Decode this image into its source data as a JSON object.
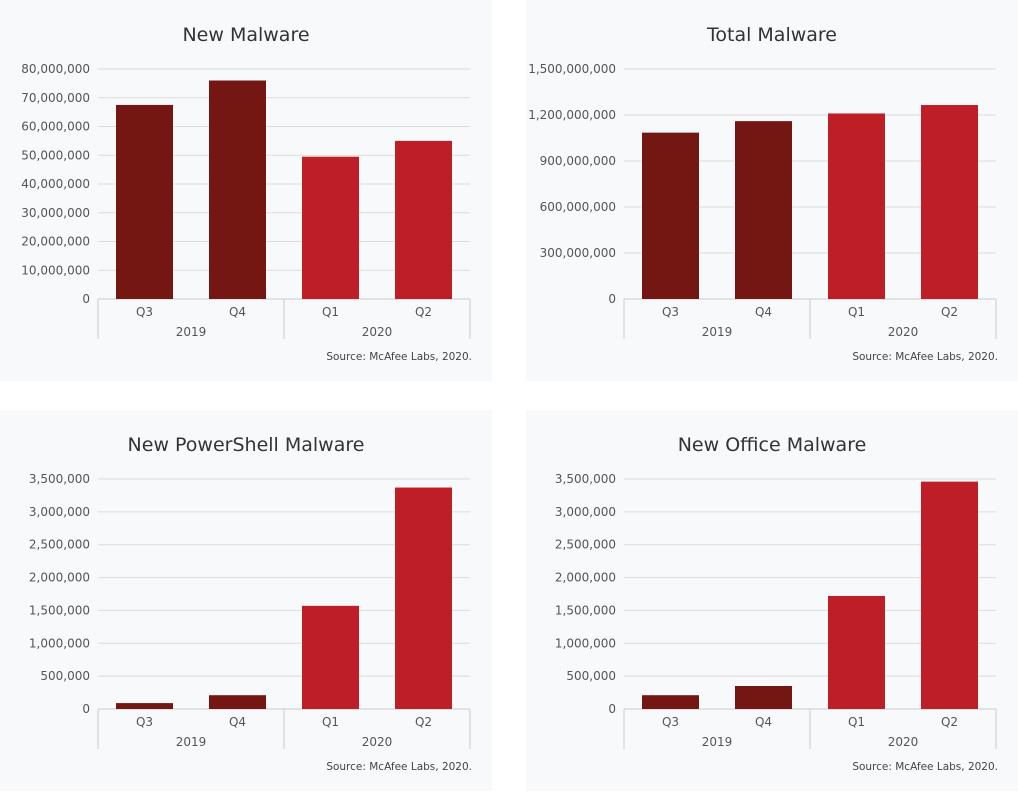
{
  "colors": {
    "year_2019": "#741713",
    "year_2020": "#be1e25",
    "grid": "#dcdcdc",
    "axis": "#cccccc"
  },
  "chart_data": [
    {
      "type": "bar",
      "title": "New Malware",
      "categories": [
        "Q3",
        "Q4",
        "Q1",
        "Q2"
      ],
      "groups": [
        {
          "label": "2019",
          "categories": [
            "Q3",
            "Q4"
          ]
        },
        {
          "label": "2020",
          "categories": [
            "Q1",
            "Q2"
          ]
        }
      ],
      "values": [
        67500000,
        76000000,
        49500000,
        55000000
      ],
      "ylim": [
        0,
        80000000
      ],
      "yticks": [
        0,
        10000000,
        20000000,
        30000000,
        40000000,
        50000000,
        60000000,
        70000000,
        80000000
      ],
      "yticklabels": [
        "0",
        "10,000,000",
        "20,000,000",
        "30,000,000",
        "40,000,000",
        "50,000,000",
        "60,000,000",
        "70,000,000",
        "80,000,000"
      ],
      "grid": true,
      "source": "Source: McAfee Labs, 2020."
    },
    {
      "type": "bar",
      "title": "Total Malware",
      "categories": [
        "Q3",
        "Q4",
        "Q1",
        "Q2"
      ],
      "groups": [
        {
          "label": "2019",
          "categories": [
            "Q3",
            "Q4"
          ]
        },
        {
          "label": "2020",
          "categories": [
            "Q1",
            "Q2"
          ]
        }
      ],
      "values": [
        1085000000,
        1160000000,
        1210000000,
        1265000000
      ],
      "ylim": [
        0,
        1500000000
      ],
      "yticks": [
        0,
        300000000,
        600000000,
        900000000,
        1200000000,
        1500000000
      ],
      "yticklabels": [
        "0",
        "300,000,000",
        "600,000,000",
        "900,000,000",
        "1,200,000,000",
        "1,500,000,000"
      ],
      "grid": true,
      "source": "Source: McAfee Labs, 2020."
    },
    {
      "type": "bar",
      "title": "New PowerShell Malware",
      "categories": [
        "Q3",
        "Q4",
        "Q1",
        "Q2"
      ],
      "groups": [
        {
          "label": "2019",
          "categories": [
            "Q3",
            "Q4"
          ]
        },
        {
          "label": "2020",
          "categories": [
            "Q1",
            "Q2"
          ]
        }
      ],
      "values": [
        90000,
        210000,
        1570000,
        3370000
      ],
      "ylim": [
        0,
        3500000
      ],
      "yticks": [
        0,
        500000,
        1000000,
        1500000,
        2000000,
        2500000,
        3000000,
        3500000
      ],
      "yticklabels": [
        "0",
        "500,000",
        "1,000,000",
        "1,500,000",
        "2,000,000",
        "2,500,000",
        "3,000,000",
        "3,500,000"
      ],
      "grid": true,
      "source": "Source: McAfee Labs, 2020."
    },
    {
      "type": "bar",
      "title": "New Office Malware",
      "categories": [
        "Q3",
        "Q4",
        "Q1",
        "Q2"
      ],
      "groups": [
        {
          "label": "2019",
          "categories": [
            "Q3",
            "Q4"
          ]
        },
        {
          "label": "2020",
          "categories": [
            "Q1",
            "Q2"
          ]
        }
      ],
      "values": [
        210000,
        350000,
        1720000,
        3460000
      ],
      "ylim": [
        0,
        3500000
      ],
      "yticks": [
        0,
        500000,
        1000000,
        1500000,
        2000000,
        2500000,
        3000000,
        3500000
      ],
      "yticklabels": [
        "0",
        "500,000",
        "1,000,000",
        "1,500,000",
        "2,000,000",
        "2,500,000",
        "3,000,000",
        "3,500,000"
      ],
      "grid": true,
      "source": "Source: McAfee Labs, 2020."
    }
  ]
}
